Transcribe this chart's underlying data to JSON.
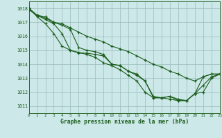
{
  "title": "Graphe pression niveau de la mer (hPa)",
  "bg_color": "#cce8e8",
  "grid_color": "#99bbbb",
  "line_color": "#1a5c1a",
  "xmin": 0,
  "xmax": 23,
  "ymin": 1010.5,
  "ymax": 1018.5,
  "yticks": [
    1011,
    1012,
    1013,
    1014,
    1015,
    1016,
    1017,
    1018
  ],
  "xticks": [
    0,
    1,
    2,
    3,
    4,
    5,
    6,
    7,
    8,
    9,
    10,
    11,
    12,
    13,
    14,
    15,
    16,
    17,
    18,
    19,
    20,
    21,
    22,
    23
  ],
  "lines": [
    [
      1017.9,
      1017.5,
      1017.4,
      1017.0,
      1016.8,
      1016.5,
      1015.2,
      1015.0,
      1014.9,
      1014.7,
      1014.0,
      1013.9,
      1013.5,
      1013.2,
      1012.8,
      1011.7,
      1011.6,
      1011.7,
      1011.5,
      1011.4,
      1011.9,
      1013.1,
      1013.3,
      1013.3
    ],
    [
      1018.0,
      1017.5,
      1017.2,
      1016.9,
      1016.2,
      1015.0,
      1014.8,
      1014.8,
      1014.7,
      1014.6,
      1014.0,
      1013.9,
      1013.5,
      1013.3,
      1012.8,
      1011.6,
      1011.6,
      1011.7,
      1011.4,
      1011.4,
      1011.9,
      1012.5,
      1013.1,
      1013.3
    ],
    [
      1018.0,
      1017.4,
      1016.9,
      1016.2,
      1015.3,
      1015.0,
      1014.85,
      1014.7,
      1014.5,
      1014.1,
      1013.9,
      1013.6,
      1013.2,
      1012.8,
      1012.0,
      1011.6,
      1011.6,
      1011.5,
      1011.4,
      1011.4,
      1011.9,
      1012.0,
      1013.0,
      1013.3
    ],
    [
      1018.0,
      1017.5,
      1017.3,
      1017.0,
      1016.9,
      1016.6,
      1016.3,
      1016.0,
      1015.8,
      1015.6,
      1015.3,
      1015.1,
      1014.9,
      1014.6,
      1014.3,
      1014.0,
      1013.8,
      1013.5,
      1013.3,
      1013.0,
      1012.8,
      1013.1,
      1013.3,
      1013.3
    ]
  ]
}
